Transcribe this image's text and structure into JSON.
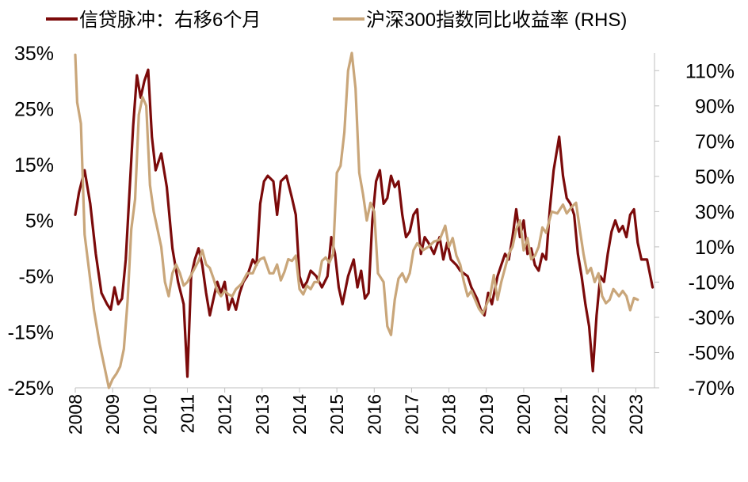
{
  "chart_data": {
    "type": "line",
    "title": "",
    "xlabel": "",
    "ylabel_left": "",
    "ylabel_right": "",
    "legend_position": "top",
    "grid": false,
    "x_ticks": [
      "2008",
      "2009",
      "2010",
      "2011",
      "2012",
      "2013",
      "2014",
      "2015",
      "2016",
      "2017",
      "2018",
      "2019",
      "2020",
      "2021",
      "2022",
      "2023"
    ],
    "x_range": [
      2008.0,
      2023.5
    ],
    "y_left": {
      "range": [
        -25,
        35
      ],
      "ticks": [
        35,
        25,
        15,
        5,
        -5,
        -15,
        -25
      ],
      "tick_labels": [
        "35%",
        "25%",
        "15%",
        "5%",
        "-5%",
        "-15%",
        "-25%"
      ]
    },
    "y_right": {
      "range": [
        -70,
        120
      ],
      "ticks": [
        110,
        90,
        70,
        50,
        30,
        10,
        -10,
        -30,
        -50,
        -70
      ],
      "tick_labels": [
        "110%",
        "90%",
        "70%",
        "50%",
        "30%",
        "10%",
        "-10%",
        "-30%",
        "-50%",
        "-70%"
      ]
    },
    "series": [
      {
        "name": "信贷脉冲：右移6个月",
        "axis": "left",
        "color": "#7B0A0A",
        "points": [
          [
            2008.0,
            6
          ],
          [
            2008.1,
            10
          ],
          [
            2008.25,
            14
          ],
          [
            2008.4,
            8
          ],
          [
            2008.55,
            -1
          ],
          [
            2008.7,
            -8
          ],
          [
            2008.85,
            -10
          ],
          [
            2008.95,
            -11
          ],
          [
            2009.05,
            -7
          ],
          [
            2009.15,
            -10
          ],
          [
            2009.25,
            -9
          ],
          [
            2009.35,
            -2
          ],
          [
            2009.45,
            10
          ],
          [
            2009.55,
            22
          ],
          [
            2009.65,
            31
          ],
          [
            2009.75,
            27
          ],
          [
            2009.85,
            30
          ],
          [
            2009.95,
            32
          ],
          [
            2010.05,
            20
          ],
          [
            2010.15,
            14
          ],
          [
            2010.3,
            17
          ],
          [
            2010.45,
            11
          ],
          [
            2010.6,
            0
          ],
          [
            2010.75,
            -6
          ],
          [
            2010.9,
            -10
          ],
          [
            2011.0,
            -23
          ],
          [
            2011.1,
            -5
          ],
          [
            2011.2,
            -2
          ],
          [
            2011.3,
            0
          ],
          [
            2011.4,
            -3
          ],
          [
            2011.5,
            -8
          ],
          [
            2011.6,
            -12
          ],
          [
            2011.7,
            -9
          ],
          [
            2011.8,
            -6
          ],
          [
            2011.9,
            -8
          ],
          [
            2012.0,
            -6
          ],
          [
            2012.1,
            -11
          ],
          [
            2012.2,
            -9
          ],
          [
            2012.3,
            -11
          ],
          [
            2012.4,
            -8
          ],
          [
            2012.5,
            -6
          ],
          [
            2012.6,
            -5
          ],
          [
            2012.75,
            -2
          ],
          [
            2012.85,
            -3
          ],
          [
            2012.95,
            8
          ],
          [
            2013.05,
            12
          ],
          [
            2013.15,
            13
          ],
          [
            2013.3,
            12
          ],
          [
            2013.4,
            6
          ],
          [
            2013.5,
            12
          ],
          [
            2013.65,
            13
          ],
          [
            2013.8,
            9
          ],
          [
            2013.9,
            6
          ],
          [
            2014.0,
            -5
          ],
          [
            2014.1,
            -7
          ],
          [
            2014.2,
            -6
          ],
          [
            2014.3,
            -4
          ],
          [
            2014.45,
            -5
          ],
          [
            2014.6,
            -7
          ],
          [
            2014.75,
            -5
          ],
          [
            2014.85,
            2
          ],
          [
            2014.95,
            -1
          ],
          [
            2015.05,
            -7
          ],
          [
            2015.15,
            -10
          ],
          [
            2015.3,
            -5
          ],
          [
            2015.45,
            -2
          ],
          [
            2015.55,
            -7
          ],
          [
            2015.65,
            -4
          ],
          [
            2015.75,
            -9
          ],
          [
            2015.85,
            -8
          ],
          [
            2015.95,
            5
          ],
          [
            2016.05,
            12
          ],
          [
            2016.15,
            14
          ],
          [
            2016.25,
            8
          ],
          [
            2016.35,
            9
          ],
          [
            2016.45,
            13
          ],
          [
            2016.55,
            11
          ],
          [
            2016.65,
            12
          ],
          [
            2016.75,
            6
          ],
          [
            2016.85,
            2
          ],
          [
            2016.95,
            3
          ],
          [
            2017.05,
            6
          ],
          [
            2017.15,
            7
          ],
          [
            2017.25,
            -1
          ],
          [
            2017.35,
            2
          ],
          [
            2017.45,
            1
          ],
          [
            2017.6,
            -1
          ],
          [
            2017.75,
            2
          ],
          [
            2017.85,
            -2
          ],
          [
            2017.95,
            1
          ],
          [
            2018.05,
            -2
          ],
          [
            2018.2,
            -3
          ],
          [
            2018.3,
            -4
          ],
          [
            2018.5,
            -5
          ],
          [
            2018.6,
            -7
          ],
          [
            2018.75,
            -9
          ],
          [
            2018.85,
            -11
          ],
          [
            2018.95,
            -12
          ],
          [
            2019.05,
            -8
          ],
          [
            2019.15,
            -10
          ],
          [
            2019.3,
            -5
          ],
          [
            2019.4,
            -3
          ],
          [
            2019.5,
            -1
          ],
          [
            2019.6,
            -2
          ],
          [
            2019.7,
            2
          ],
          [
            2019.8,
            7
          ],
          [
            2019.9,
            2
          ],
          [
            2020.0,
            5
          ],
          [
            2020.1,
            -1
          ],
          [
            2020.2,
            0
          ],
          [
            2020.3,
            -3
          ],
          [
            2020.4,
            -4
          ],
          [
            2020.5,
            -1
          ],
          [
            2020.6,
            -2
          ],
          [
            2020.7,
            7
          ],
          [
            2020.8,
            14
          ],
          [
            2020.95,
            20
          ],
          [
            2021.05,
            13
          ],
          [
            2021.15,
            9
          ],
          [
            2021.25,
            8
          ],
          [
            2021.35,
            6
          ],
          [
            2021.45,
            -1
          ],
          [
            2021.55,
            -5
          ],
          [
            2021.65,
            -10
          ],
          [
            2021.75,
            -14
          ],
          [
            2021.85,
            -22
          ],
          [
            2021.95,
            -12
          ],
          [
            2022.05,
            -5
          ],
          [
            2022.15,
            -6
          ],
          [
            2022.25,
            -1
          ],
          [
            2022.35,
            3
          ],
          [
            2022.45,
            5
          ],
          [
            2022.55,
            3
          ],
          [
            2022.65,
            4
          ],
          [
            2022.75,
            2
          ],
          [
            2022.85,
            6
          ],
          [
            2022.95,
            7
          ],
          [
            2023.05,
            1
          ],
          [
            2023.15,
            -2
          ],
          [
            2023.3,
            -2
          ],
          [
            2023.45,
            -7
          ]
        ]
      },
      {
        "name": "沪深300指数同比收益率 (RHS)",
        "axis": "right",
        "color": "#C9A67A",
        "points": [
          [
            2008.0,
            119
          ],
          [
            2008.05,
            92
          ],
          [
            2008.15,
            80
          ],
          [
            2008.25,
            17
          ],
          [
            2008.35,
            0
          ],
          [
            2008.5,
            -26
          ],
          [
            2008.65,
            -45
          ],
          [
            2008.8,
            -60
          ],
          [
            2008.9,
            -70
          ],
          [
            2009.0,
            -65
          ],
          [
            2009.1,
            -62
          ],
          [
            2009.2,
            -58
          ],
          [
            2009.3,
            -48
          ],
          [
            2009.4,
            -21
          ],
          [
            2009.5,
            20
          ],
          [
            2009.6,
            37
          ],
          [
            2009.7,
            85
          ],
          [
            2009.8,
            95
          ],
          [
            2009.9,
            90
          ],
          [
            2010.0,
            45
          ],
          [
            2010.1,
            30
          ],
          [
            2010.2,
            20
          ],
          [
            2010.3,
            10
          ],
          [
            2010.4,
            -10
          ],
          [
            2010.5,
            -18
          ],
          [
            2010.6,
            -5
          ],
          [
            2010.7,
            0
          ],
          [
            2010.8,
            -5
          ],
          [
            2010.9,
            -12
          ],
          [
            2011.0,
            -10
          ],
          [
            2011.1,
            -6
          ],
          [
            2011.2,
            -2
          ],
          [
            2011.3,
            2
          ],
          [
            2011.4,
            8
          ],
          [
            2011.5,
            0
          ],
          [
            2011.6,
            -2
          ],
          [
            2011.7,
            -8
          ],
          [
            2011.8,
            -15
          ],
          [
            2011.9,
            -18
          ],
          [
            2012.0,
            -15
          ],
          [
            2012.1,
            -17
          ],
          [
            2012.2,
            -18
          ],
          [
            2012.3,
            -14
          ],
          [
            2012.45,
            -11
          ],
          [
            2012.6,
            -5
          ],
          [
            2012.75,
            -5
          ],
          [
            2012.85,
            0
          ],
          [
            2012.95,
            3
          ],
          [
            2013.05,
            4
          ],
          [
            2013.2,
            -5
          ],
          [
            2013.3,
            -5
          ],
          [
            2013.4,
            0
          ],
          [
            2013.5,
            -9
          ],
          [
            2013.6,
            -4
          ],
          [
            2013.7,
            3
          ],
          [
            2013.8,
            2
          ],
          [
            2013.9,
            5
          ],
          [
            2014.0,
            -14
          ],
          [
            2014.1,
            -17
          ],
          [
            2014.2,
            -12
          ],
          [
            2014.3,
            -14
          ],
          [
            2014.4,
            -10
          ],
          [
            2014.5,
            -10
          ],
          [
            2014.6,
            2
          ],
          [
            2014.7,
            4
          ],
          [
            2014.8,
            1
          ],
          [
            2014.9,
            6
          ],
          [
            2015.0,
            52
          ],
          [
            2015.1,
            56
          ],
          [
            2015.2,
            75
          ],
          [
            2015.3,
            110
          ],
          [
            2015.4,
            120
          ],
          [
            2015.5,
            100
          ],
          [
            2015.6,
            52
          ],
          [
            2015.7,
            40
          ],
          [
            2015.8,
            25
          ],
          [
            2015.9,
            35
          ],
          [
            2016.0,
            30
          ],
          [
            2016.1,
            -5
          ],
          [
            2016.25,
            -10
          ],
          [
            2016.35,
            -35
          ],
          [
            2016.45,
            -40
          ],
          [
            2016.55,
            -20
          ],
          [
            2016.65,
            -8
          ],
          [
            2016.75,
            -5
          ],
          [
            2016.85,
            -10
          ],
          [
            2016.95,
            -5
          ],
          [
            2017.05,
            8
          ],
          [
            2017.15,
            12
          ],
          [
            2017.3,
            8
          ],
          [
            2017.45,
            10
          ],
          [
            2017.6,
            13
          ],
          [
            2017.75,
            14
          ],
          [
            2017.9,
            22
          ],
          [
            2018.0,
            10
          ],
          [
            2018.1,
            15
          ],
          [
            2018.2,
            5
          ],
          [
            2018.3,
            0
          ],
          [
            2018.4,
            -10
          ],
          [
            2018.5,
            -18
          ],
          [
            2018.6,
            -15
          ],
          [
            2018.7,
            -20
          ],
          [
            2018.8,
            -25
          ],
          [
            2018.9,
            -28
          ],
          [
            2019.0,
            -23
          ],
          [
            2019.1,
            -18
          ],
          [
            2019.2,
            -6
          ],
          [
            2019.3,
            -20
          ],
          [
            2019.4,
            -10
          ],
          [
            2019.5,
            -2
          ],
          [
            2019.6,
            6
          ],
          [
            2019.7,
            10
          ],
          [
            2019.8,
            20
          ],
          [
            2019.9,
            25
          ],
          [
            2020.0,
            8
          ],
          [
            2020.1,
            15
          ],
          [
            2020.2,
            3
          ],
          [
            2020.3,
            5
          ],
          [
            2020.4,
            10
          ],
          [
            2020.5,
            21
          ],
          [
            2020.6,
            18
          ],
          [
            2020.75,
            30
          ],
          [
            2020.9,
            29
          ],
          [
            2021.05,
            34
          ],
          [
            2021.15,
            29
          ],
          [
            2021.3,
            33
          ],
          [
            2021.4,
            35
          ],
          [
            2021.5,
            20
          ],
          [
            2021.6,
            6
          ],
          [
            2021.7,
            -5
          ],
          [
            2021.8,
            -2
          ],
          [
            2021.9,
            -10
          ],
          [
            2022.0,
            -5
          ],
          [
            2022.1,
            -18
          ],
          [
            2022.2,
            -22
          ],
          [
            2022.3,
            -20
          ],
          [
            2022.4,
            -14
          ],
          [
            2022.55,
            -18
          ],
          [
            2022.65,
            -15
          ],
          [
            2022.75,
            -18
          ],
          [
            2022.85,
            -26
          ],
          [
            2022.95,
            -19
          ],
          [
            2023.05,
            -20
          ]
        ]
      }
    ]
  }
}
